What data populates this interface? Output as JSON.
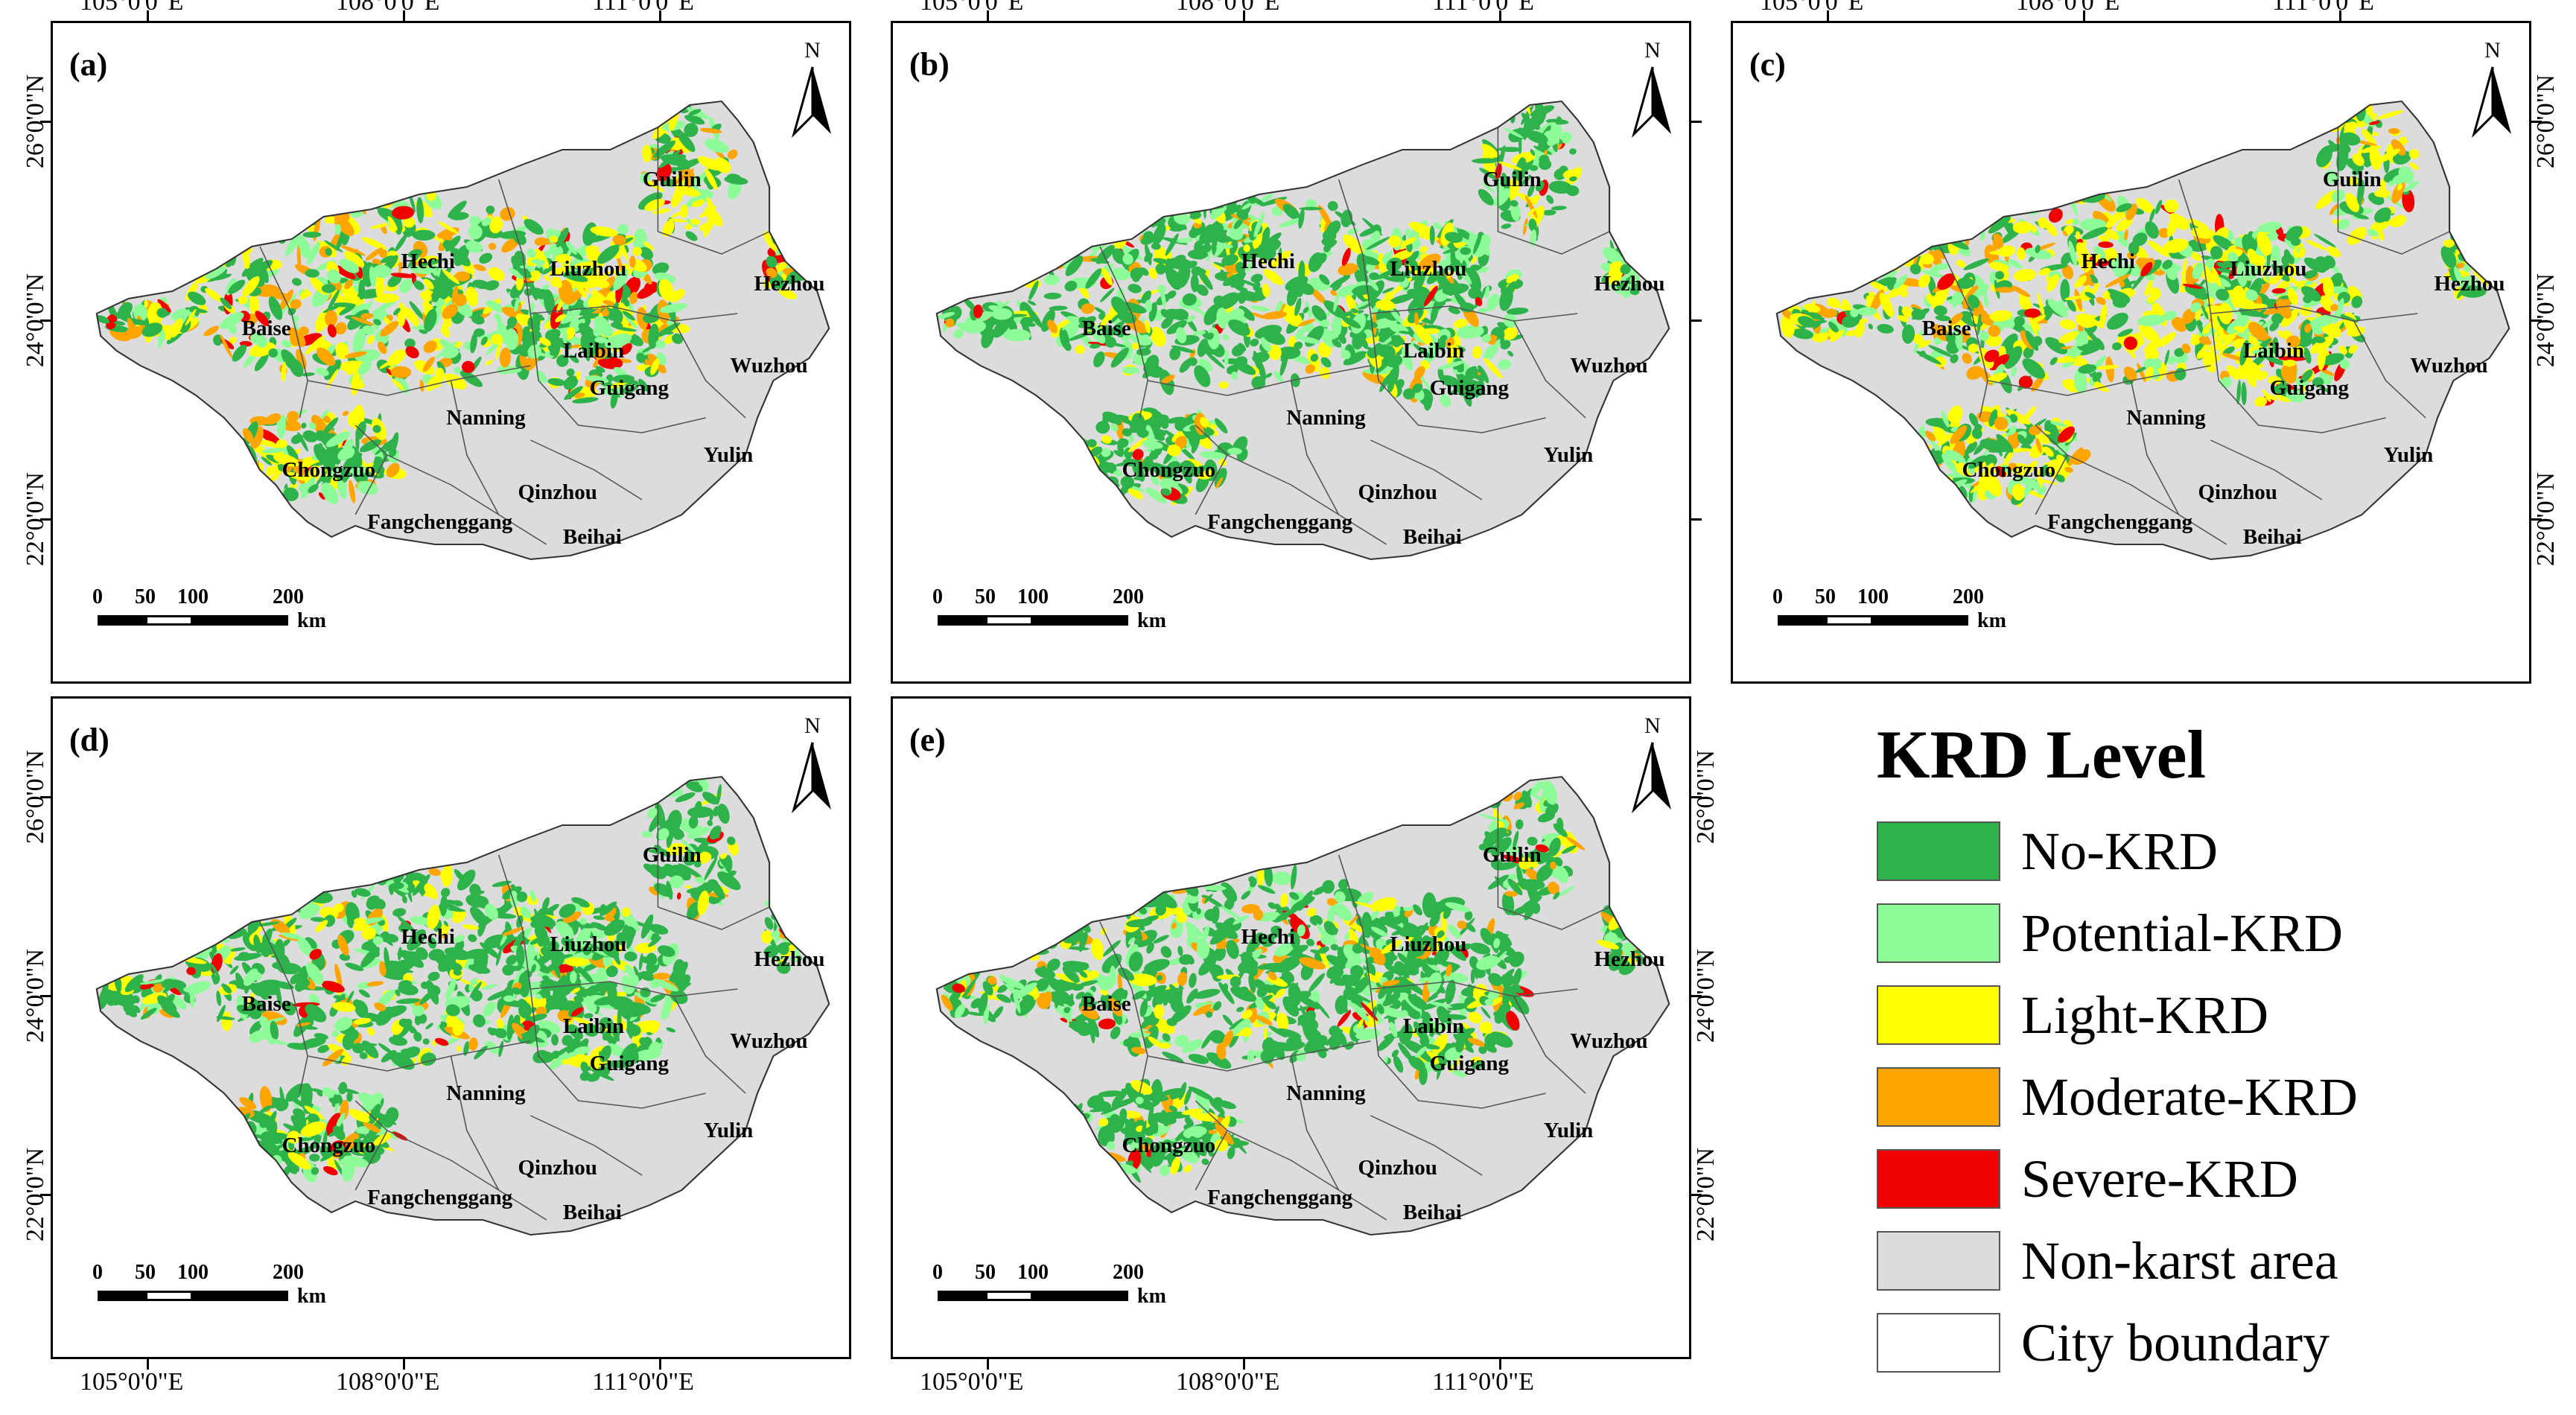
{
  "figure": {
    "panels": [
      {
        "label": "(a)",
        "mix": {
          "green": 0.35,
          "lightgreen": 0.2,
          "yellow": 0.25,
          "orange": 0.15,
          "red": 0.05
        }
      },
      {
        "label": "(b)",
        "mix": {
          "green": 0.55,
          "lightgreen": 0.25,
          "yellow": 0.12,
          "orange": 0.06,
          "red": 0.02
        }
      },
      {
        "label": "(c)",
        "mix": {
          "green": 0.3,
          "lightgreen": 0.2,
          "yellow": 0.3,
          "orange": 0.16,
          "red": 0.04
        }
      },
      {
        "label": "(d)",
        "mix": {
          "green": 0.6,
          "lightgreen": 0.2,
          "yellow": 0.12,
          "orange": 0.06,
          "red": 0.02
        }
      },
      {
        "label": "(e)",
        "mix": {
          "green": 0.62,
          "lightgreen": 0.18,
          "yellow": 0.1,
          "orange": 0.08,
          "red": 0.02
        }
      }
    ],
    "longitude_labels": [
      "105°0'0\"E",
      "108°0'0\"E",
      "111°0'0\"E"
    ],
    "latitude_labels": [
      "26°0'0\"N",
      "24°0'0\"N",
      "22°0'0\"N"
    ],
    "north_label": "N",
    "cities": [
      "Guilin",
      "Hechi",
      "Liuzhou",
      "Hezhou",
      "Baise",
      "Laibin",
      "Wuzhou",
      "Guigang",
      "Nanning",
      "Yulin",
      "Chongzuo",
      "Qinzhou",
      "Fangchenggang",
      "Beihai"
    ],
    "scale": {
      "ticks": [
        "0",
        "50",
        "100",
        "200"
      ],
      "unit": "km"
    }
  },
  "legend": {
    "title": "KRD Level",
    "items": [
      {
        "label": "No-KRD",
        "color": "#2db34a"
      },
      {
        "label": "Potential-KRD",
        "color": "#8dfb98"
      },
      {
        "label": "Light-KRD",
        "color": "#ffff00"
      },
      {
        "label": "Moderate-KRD",
        "color": "#ffa500"
      },
      {
        "label": "Severe-KRD",
        "color": "#f00000"
      },
      {
        "label": "Non-karst area",
        "color": "#dcdcdc"
      },
      {
        "label": "City boundary",
        "color": "#ffffff"
      }
    ]
  }
}
